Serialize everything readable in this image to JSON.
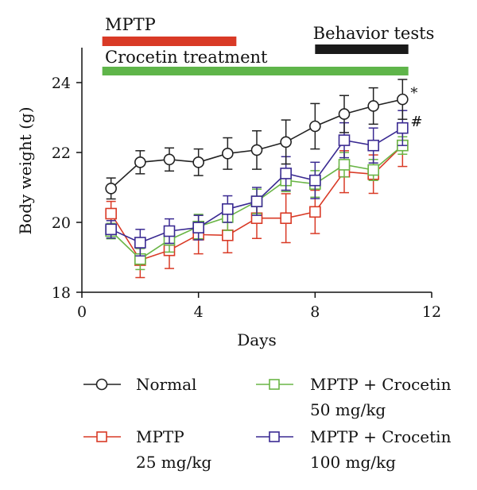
{
  "chart_data": {
    "type": "line",
    "xlabel": "Days",
    "ylabel": "Body weight (g)",
    "xlim": [
      0,
      12
    ],
    "ylim": [
      18,
      25
    ],
    "xticks": [
      "0",
      "4",
      "8",
      "12"
    ],
    "yticks": [
      "18",
      "20",
      "22",
      "24"
    ],
    "grid": false,
    "legend_position": "bottom",
    "annotations": {
      "bars": [
        {
          "label": "MPTP",
          "color": "#d93a26",
          "start": 0.7,
          "end": 5.3
        },
        {
          "label": "Behavior tests",
          "color": "#1a1a1a",
          "start": 8.0,
          "end": 11.2
        },
        {
          "label": "Crocetin treatment",
          "color": "#5fb54a",
          "start": 0.7,
          "end": 11.2
        }
      ],
      "significance": [
        {
          "text": "*",
          "series": "Normal"
        },
        {
          "text": "#",
          "series": "MPTP + Crocetin 100 mg/kg"
        }
      ]
    },
    "x": [
      1,
      2,
      3,
      4,
      5,
      6,
      7,
      8,
      9,
      10,
      11
    ],
    "series": [
      {
        "name": "Normal",
        "color": "#222222",
        "marker": "circle",
        "values": [
          20.97,
          21.72,
          21.8,
          21.72,
          21.97,
          22.07,
          22.3,
          22.75,
          23.1,
          23.33,
          23.52
        ],
        "errors": [
          0.3,
          0.33,
          0.33,
          0.38,
          0.45,
          0.55,
          0.63,
          0.65,
          0.53,
          0.52,
          0.57
        ]
      },
      {
        "name": "MPTP",
        "color": "#d93a26",
        "marker": "square",
        "values": [
          20.25,
          18.92,
          19.2,
          19.65,
          19.63,
          20.12,
          20.12,
          20.3,
          21.45,
          21.38,
          22.2
        ],
        "errors": [
          0.35,
          0.5,
          0.52,
          0.55,
          0.5,
          0.58,
          0.7,
          0.62,
          0.6,
          0.55,
          0.6
        ]
      },
      {
        "name": "MPTP + Crocetin 50 mg/kg",
        "color": "#6ab546",
        "marker": "square",
        "values": [
          19.75,
          18.95,
          19.5,
          19.88,
          20.15,
          20.6,
          21.2,
          21.1,
          21.65,
          21.5,
          22.2
        ],
        "errors": [
          0.22,
          0.3,
          0.35,
          0.35,
          0.38,
          0.35,
          0.32,
          0.38,
          0.35,
          0.3,
          0.25
        ]
      },
      {
        "name": "MPTP + Crocetin 100 mg/kg",
        "color": "#3a2a92",
        "marker": "square",
        "values": [
          19.8,
          19.42,
          19.75,
          19.85,
          20.38,
          20.6,
          21.4,
          21.2,
          22.35,
          22.2,
          22.7
        ],
        "errors": [
          0.25,
          0.38,
          0.35,
          0.35,
          0.38,
          0.4,
          0.48,
          0.52,
          0.5,
          0.5,
          0.5
        ]
      }
    ]
  },
  "legend": [
    {
      "line1": "Normal",
      "line2": ""
    },
    {
      "line1": "MPTP",
      "line2": "25 mg/kg"
    },
    {
      "line1": "MPTP + Crocetin",
      "line2": "50 mg/kg"
    },
    {
      "line1": "MPTP + Crocetin",
      "line2": "100 mg/kg"
    }
  ]
}
